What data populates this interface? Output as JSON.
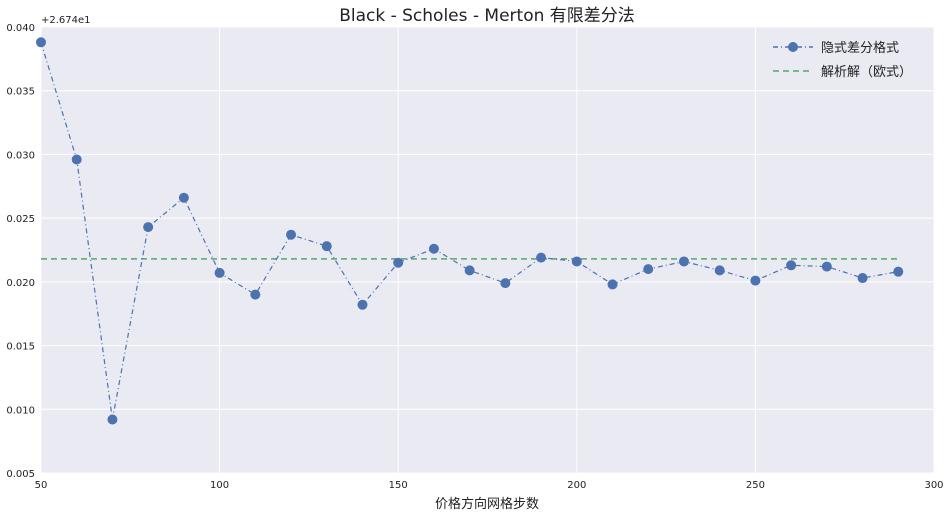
{
  "chart_data": {
    "type": "line",
    "title": "Black - Scholes - Merton 有限差分法",
    "xlabel": "价格方向网格步数",
    "ylabel": "",
    "y_offset_label": "+2.674e1",
    "xlim": [
      50,
      300
    ],
    "ylim": [
      0.005,
      0.04
    ],
    "x_ticks": [
      50,
      100,
      150,
      200,
      250,
      300
    ],
    "x_tick_labels": [
      "50",
      "100",
      "150",
      "200",
      "250",
      "300"
    ],
    "y_ticks": [
      0.005,
      0.01,
      0.015,
      0.02,
      0.025,
      0.03,
      0.035,
      0.04
    ],
    "y_tick_labels": [
      "0.005",
      "0.010",
      "0.015",
      "0.020",
      "0.025",
      "0.030",
      "0.035",
      "0.040"
    ],
    "grid": true,
    "legend_position": "top-right",
    "series": [
      {
        "name": "隐式差分格式",
        "style": "dash-dot with circle markers",
        "color": "#4c72b0",
        "x": [
          50,
          60,
          70,
          80,
          90,
          100,
          110,
          120,
          130,
          140,
          150,
          160,
          170,
          180,
          190,
          200,
          210,
          220,
          230,
          240,
          250,
          260,
          270,
          280,
          290
        ],
        "values": [
          0.0388,
          0.0296,
          0.0092,
          0.0243,
          0.0266,
          0.0207,
          0.019,
          0.0237,
          0.0228,
          0.0182,
          0.0215,
          0.0226,
          0.0209,
          0.0199,
          0.0219,
          0.0216,
          0.0198,
          0.021,
          0.0216,
          0.0209,
          0.0201,
          0.0213,
          0.0212,
          0.0203,
          0.0208
        ]
      },
      {
        "name": "解析解（欧式）",
        "style": "dashed line",
        "color": "#55a868",
        "x": [
          50,
          290
        ],
        "values": [
          0.0218,
          0.0218
        ]
      }
    ]
  },
  "colors": {
    "plot_background": "#eaeaf2",
    "grid": "#ffffff",
    "implicit_series": "#4c72b0",
    "analytic_series": "#55a868"
  }
}
